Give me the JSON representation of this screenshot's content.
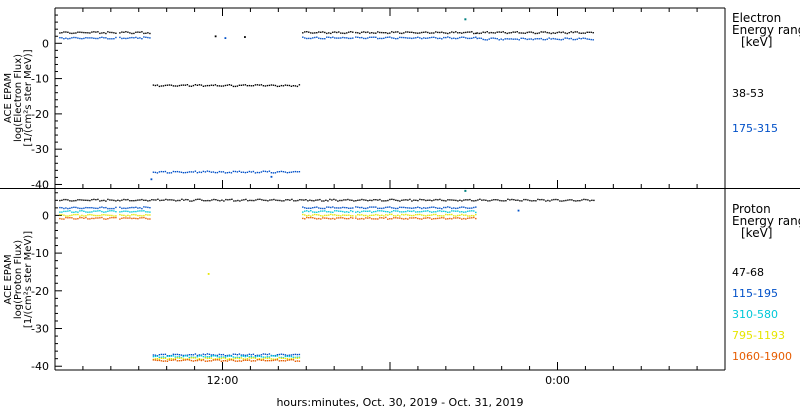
{
  "x_axis": {
    "title": "hours:minutes, Oct. 30, 2019 - Oct. 31, 2019",
    "tick_labels": [
      "12:00",
      "0:00"
    ],
    "range_hours": [
      0,
      48
    ]
  },
  "chart_data": [
    {
      "type": "scatter",
      "ylabel": [
        "ACE EPAM",
        "log(Electron Flux)",
        "[1/(cm²s ster MeV)]"
      ],
      "ylim": [
        -41,
        10
      ],
      "yticks": [
        0,
        -10,
        -20,
        -30,
        -40
      ],
      "legend_title": [
        "Electron",
        "Energy ranges",
        "[keV]"
      ],
      "series": [
        {
          "name": "38-53",
          "color": "#000000",
          "segments": [
            {
              "x": [
                0.3,
                4.4
              ],
              "y": 3
            },
            {
              "x": [
                4.6,
                6.8
              ],
              "y": 3
            },
            {
              "x": [
                7.0,
                17.6
              ],
              "y": -12
            },
            {
              "x": [
                17.7,
                21.3
              ],
              "y": 3
            },
            {
              "x": [
                21.5,
                30.1
              ],
              "y": 3
            },
            {
              "x": [
                30.2,
                38.6
              ],
              "y": 3
            }
          ],
          "points": [
            {
              "x": 11.5,
              "y": 2.0
            },
            {
              "x": 13.6,
              "y": 1.8
            }
          ]
        },
        {
          "name": "175-315",
          "color": "#0050c8",
          "segments": [
            {
              "x": [
                0.3,
                4.4
              ],
              "y": 1.5
            },
            {
              "x": [
                4.6,
                6.8
              ],
              "y": 1.5
            },
            {
              "x": [
                7.0,
                17.6
              ],
              "y": -36.5
            },
            {
              "x": [
                17.7,
                21.3
              ],
              "y": 1.5
            },
            {
              "x": [
                21.5,
                30.1
              ],
              "y": 1.5
            },
            {
              "x": [
                30.2,
                38.6
              ],
              "y": 1.2
            }
          ],
          "points": [
            {
              "x": 6.9,
              "y": -38.5
            },
            {
              "x": 15.5,
              "y": -37.8
            },
            {
              "x": 12.2,
              "y": 1.5
            }
          ]
        }
      ],
      "annotations": [
        {
          "x": 29.4,
          "y": 6.8,
          "color": "#008080"
        }
      ]
    },
    {
      "type": "scatter",
      "ylabel": [
        "ACE EPAM",
        "log(Proton Flux)",
        "[1/(cm²s ster MeV)]"
      ],
      "ylim": [
        -41,
        7
      ],
      "yticks": [
        0,
        -10,
        -20,
        -30,
        -40
      ],
      "legend_title": [
        "Proton",
        "Energy ranges",
        "[keV]"
      ],
      "series": [
        {
          "name": "47-68",
          "color": "#000000",
          "segments": [
            {
              "x": [
                0.3,
                38.6
              ],
              "y": 4
            }
          ],
          "points": []
        },
        {
          "name": "115-195",
          "color": "#0050c8",
          "segments": [
            {
              "x": [
                0.3,
                4.4
              ],
              "y": 2
            },
            {
              "x": [
                4.6,
                6.8
              ],
              "y": 2
            },
            {
              "x": [
                7.0,
                17.6
              ],
              "y": -37
            },
            {
              "x": [
                17.7,
                21.3
              ],
              "y": 2
            },
            {
              "x": [
                21.5,
                30.1
              ],
              "y": 2
            }
          ],
          "points": [
            {
              "x": 33.2,
              "y": 1.3
            }
          ]
        },
        {
          "name": "310-580",
          "color": "#00c8d8",
          "segments": [
            {
              "x": [
                0.3,
                4.4
              ],
              "y": 1
            },
            {
              "x": [
                4.6,
                6.8
              ],
              "y": 1
            },
            {
              "x": [
                7.0,
                17.6
              ],
              "y": -37.5
            },
            {
              "x": [
                17.7,
                21.3
              ],
              "y": 1
            },
            {
              "x": [
                21.5,
                30.1
              ],
              "y": 1
            }
          ],
          "points": []
        },
        {
          "name": "795-1193",
          "color": "#e6e600",
          "segments": [
            {
              "x": [
                0.3,
                4.4
              ],
              "y": 0
            },
            {
              "x": [
                4.6,
                6.8
              ],
              "y": 0
            },
            {
              "x": [
                7.0,
                17.6
              ],
              "y": -38
            },
            {
              "x": [
                17.7,
                21.3
              ],
              "y": 0
            },
            {
              "x": [
                21.5,
                30.1
              ],
              "y": 0
            }
          ],
          "points": [
            {
              "x": 11.0,
              "y": -15.5
            }
          ]
        },
        {
          "name": "1060-1900",
          "color": "#e65c00",
          "segments": [
            {
              "x": [
                0.3,
                4.4
              ],
              "y": -0.8
            },
            {
              "x": [
                4.6,
                6.8
              ],
              "y": -0.8
            },
            {
              "x": [
                7.0,
                17.6
              ],
              "y": -38.5
            },
            {
              "x": [
                17.7,
                21.3
              ],
              "y": -0.8
            },
            {
              "x": [
                21.5,
                30.1
              ],
              "y": -0.8
            }
          ],
          "points": []
        }
      ],
      "annotations": [
        {
          "x": 29.4,
          "y": 6.5,
          "color": "#008080"
        }
      ]
    }
  ]
}
